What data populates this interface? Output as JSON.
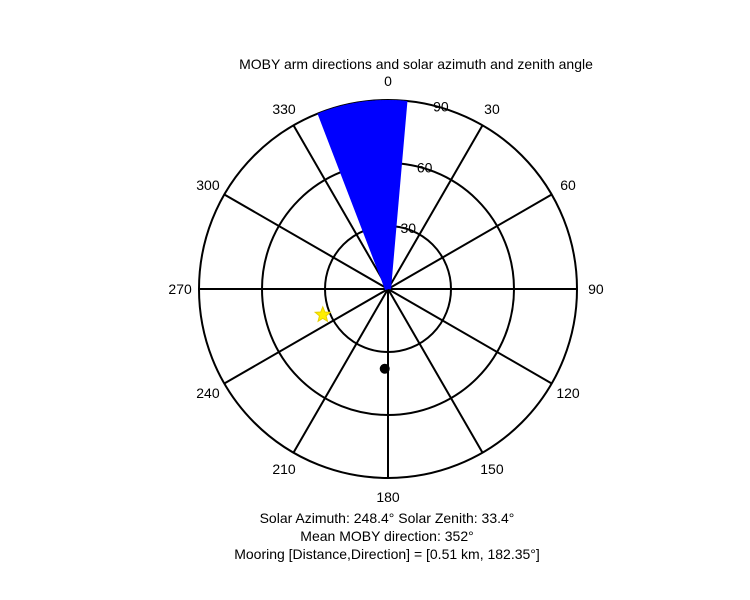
{
  "chart_data": {
    "type": "polar",
    "title": "MOBY arm directions and solar azimuth and zenith angle",
    "theta_direction": "clockwise",
    "theta_zero": "top",
    "angle_ticks": [
      0,
      30,
      60,
      90,
      120,
      150,
      180,
      210,
      240,
      270,
      300,
      330
    ],
    "angle_tick_labels": [
      "0",
      "30",
      "60",
      "90",
      "120",
      "150",
      "180",
      "210",
      "240",
      "270",
      "300",
      "330"
    ],
    "radial_axis": "zenith angle",
    "radial_ticks": [
      30,
      60,
      90
    ],
    "radial_tick_labels": [
      "30",
      "60",
      "90"
    ],
    "rlim": [
      0,
      90
    ],
    "grid": true,
    "series": [
      {
        "kind": "arm-direction-spokes",
        "color": "#0000ff",
        "r": 90,
        "theta": [
          339,
          340,
          341,
          342,
          343,
          344,
          345,
          346,
          347,
          348,
          349,
          350,
          351,
          352,
          353,
          354,
          355,
          356,
          357,
          358,
          359,
          0,
          1,
          2,
          3,
          4,
          5
        ]
      },
      {
        "kind": "solar-position",
        "color": "#ffee00",
        "marker": "star",
        "theta": 248.4,
        "r": 33.4
      },
      {
        "kind": "mooring-position",
        "color": "#000000",
        "marker": "filled-circle",
        "theta": 182.35,
        "r": 38
      }
    ]
  },
  "captions": {
    "line1": "Solar Azimuth: 248.4°    Solar Zenith: 33.4°",
    "line2": "Mean MOBY direction: 352°",
    "line3": "Mooring [Distance,Direction] = [0.51 km, 182.35°]"
  }
}
